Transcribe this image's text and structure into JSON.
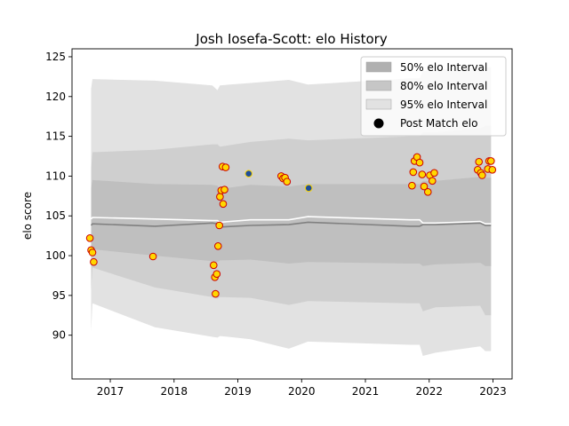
{
  "chart_data": {
    "type": "scatter",
    "title": "Josh Iosefa-Scott: elo History",
    "xlabel": "",
    "ylabel": "elo score",
    "xlim": [
      2016.4,
      2023.3
    ],
    "ylim": [
      84.5,
      126
    ],
    "x_ticks": [
      2017,
      2018,
      2019,
      2020,
      2021,
      2022,
      2023
    ],
    "y_ticks": [
      90,
      95,
      100,
      105,
      110,
      115,
      120,
      125
    ],
    "legend_position": "top-right",
    "legend": [
      {
        "label": "50% elo Interval",
        "kind": "patch",
        "color": "#b0b0b0"
      },
      {
        "label": "80% elo Interval",
        "kind": "patch",
        "color": "#c6c6c6"
      },
      {
        "label": "95% elo Interval",
        "kind": "patch",
        "color": "#e2e2e2"
      },
      {
        "label": "Post Match elo",
        "kind": "marker",
        "color": "#000000"
      }
    ],
    "colors": {
      "band95": "#e2e2e2",
      "band80": "#cfcfcf",
      "band50": "#bfbfbf",
      "median": "#808080",
      "mean": "#ffffff",
      "point_fill": "#ffd700",
      "point_edge": "#cc0000",
      "point_fill_alt": "#1f4e9a"
    },
    "bands": {
      "x": [
        2016.7,
        2016.72,
        2017.7,
        2018.6,
        2018.68,
        2018.72,
        2019.2,
        2019.8,
        2020.1,
        2021.7,
        2021.85,
        2021.9,
        2022.1,
        2022.8,
        2022.88,
        2022.97
      ],
      "lower95": [
        90.5,
        94.0,
        91.0,
        89.8,
        89.7,
        89.9,
        89.5,
        88.3,
        89.2,
        88.8,
        88.8,
        87.4,
        87.8,
        88.6,
        88.0,
        88.0
      ],
      "lower80": [
        95.5,
        98.5,
        96.0,
        94.8,
        94.6,
        94.8,
        94.7,
        93.8,
        94.3,
        94.0,
        94.0,
        93.0,
        93.5,
        93.7,
        92.5,
        92.5
      ],
      "lower50": [
        99.5,
        100.8,
        100.0,
        99.3,
        99.2,
        99.4,
        99.5,
        99.0,
        99.2,
        99.0,
        99.0,
        98.7,
        98.9,
        99.1,
        98.7,
        98.7
      ],
      "median": [
        103.8,
        104.0,
        103.7,
        104.1,
        104.0,
        103.6,
        103.8,
        103.9,
        104.2,
        103.7,
        103.7,
        103.9,
        103.9,
        104.1,
        103.8,
        103.8
      ],
      "mean": [
        104.6,
        104.8,
        104.6,
        104.4,
        104.4,
        104.2,
        104.5,
        104.5,
        104.9,
        104.5,
        104.5,
        104.1,
        104.1,
        104.3,
        104.0,
        104.0
      ],
      "upper50": [
        108.5,
        109.5,
        109.0,
        108.9,
        108.8,
        108.4,
        108.9,
        108.7,
        109.0,
        109.0,
        109.0,
        109.4,
        109.4,
        109.9,
        109.8,
        109.8
      ],
      "upper80": [
        111.0,
        113.0,
        113.3,
        114.0,
        114.0,
        113.7,
        114.3,
        114.7,
        114.5,
        115.0,
        115.0,
        115.5,
        115.5,
        116.0,
        116.3,
        116.3
      ],
      "upper95": [
        121.0,
        122.2,
        122.0,
        121.4,
        120.8,
        121.4,
        121.7,
        122.1,
        121.5,
        122.3,
        122.3,
        123.2,
        123.4,
        123.7,
        123.7,
        123.7
      ]
    },
    "points": [
      {
        "x": 2016.68,
        "y": 102.2
      },
      {
        "x": 2016.7,
        "y": 100.7
      },
      {
        "x": 2016.72,
        "y": 100.4
      },
      {
        "x": 2016.74,
        "y": 99.2
      },
      {
        "x": 2017.67,
        "y": 99.9
      },
      {
        "x": 2018.62,
        "y": 98.8
      },
      {
        "x": 2018.64,
        "y": 97.3
      },
      {
        "x": 2018.65,
        "y": 95.2
      },
      {
        "x": 2018.67,
        "y": 97.7
      },
      {
        "x": 2018.69,
        "y": 101.2
      },
      {
        "x": 2018.71,
        "y": 103.8
      },
      {
        "x": 2018.72,
        "y": 107.4
      },
      {
        "x": 2018.74,
        "y": 108.2
      },
      {
        "x": 2018.76,
        "y": 111.2
      },
      {
        "x": 2018.77,
        "y": 106.5
      },
      {
        "x": 2018.79,
        "y": 108.3
      },
      {
        "x": 2018.81,
        "y": 111.1
      },
      {
        "x": 2019.17,
        "y": 110.3,
        "alt": true
      },
      {
        "x": 2019.68,
        "y": 110.0
      },
      {
        "x": 2019.71,
        "y": 109.7
      },
      {
        "x": 2019.74,
        "y": 109.8
      },
      {
        "x": 2019.77,
        "y": 109.3
      },
      {
        "x": 2020.11,
        "y": 108.5,
        "alt": true
      },
      {
        "x": 2021.73,
        "y": 108.8
      },
      {
        "x": 2021.75,
        "y": 110.5
      },
      {
        "x": 2021.77,
        "y": 111.9
      },
      {
        "x": 2021.81,
        "y": 112.4
      },
      {
        "x": 2021.85,
        "y": 111.7
      },
      {
        "x": 2021.89,
        "y": 110.2
      },
      {
        "x": 2021.92,
        "y": 108.7
      },
      {
        "x": 2021.98,
        "y": 108.0
      },
      {
        "x": 2022.01,
        "y": 110.1
      },
      {
        "x": 2022.05,
        "y": 109.4
      },
      {
        "x": 2022.08,
        "y": 110.4
      },
      {
        "x": 2022.76,
        "y": 110.8
      },
      {
        "x": 2022.78,
        "y": 111.8
      },
      {
        "x": 2022.81,
        "y": 110.4
      },
      {
        "x": 2022.83,
        "y": 110.1
      },
      {
        "x": 2022.92,
        "y": 110.9
      },
      {
        "x": 2022.94,
        "y": 111.9
      },
      {
        "x": 2022.97,
        "y": 111.9
      },
      {
        "x": 2022.99,
        "y": 110.8
      }
    ]
  }
}
